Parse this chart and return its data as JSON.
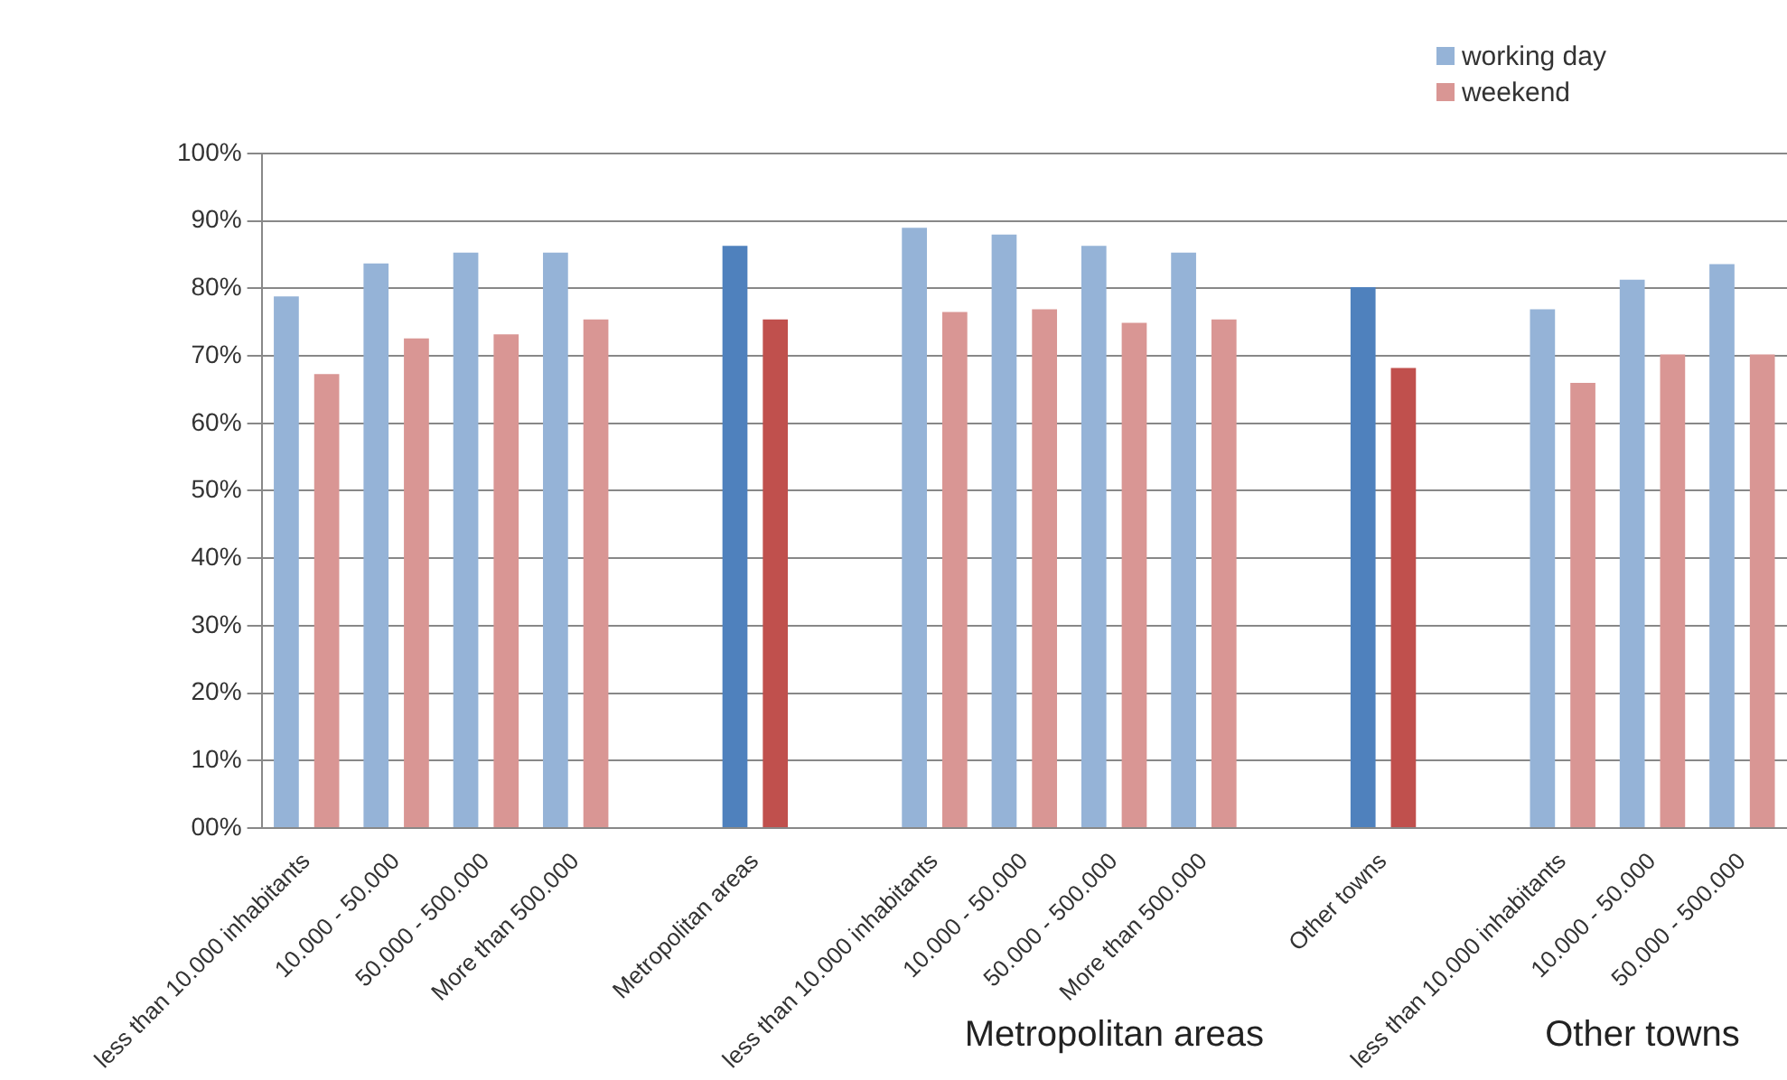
{
  "chart_data": {
    "type": "bar",
    "categories": [
      "less than 10.000 inhabitants",
      "10.000 - 50.000",
      "50.000 - 500.000",
      "More than 500.000",
      null,
      "Metropolitan areas",
      null,
      "less than 10.000 inhabitants",
      "10.000 - 50.000",
      "50.000 - 500.000",
      "More than 500.000",
      null,
      "Other towns",
      null,
      "less than 10.000 inhabitants",
      "10.000 - 50.000",
      "50.000 - 500.000"
    ],
    "series": [
      {
        "name": "working day",
        "color": "#95b3d7",
        "colors": [
          "#95b3d7",
          "#95b3d7",
          "#95b3d7",
          "#95b3d7",
          "#95b3d7",
          "#4f81bd",
          "#95b3d7",
          "#95b3d7",
          "#95b3d7",
          "#95b3d7",
          "#95b3d7",
          "#95b3d7",
          "#4f81bd",
          "#95b3d7",
          "#95b3d7",
          "#95b3d7",
          "#95b3d7"
        ],
        "values": [
          78.8,
          83.7,
          85.3,
          85.3,
          null,
          86.3,
          null,
          89,
          88,
          86.3,
          85.3,
          null,
          80.2,
          null,
          76.9,
          81.3,
          83.6
        ]
      },
      {
        "name": "weekend",
        "color": "#d99694",
        "colors": [
          "#d99694",
          "#d99694",
          "#d99694",
          "#d99694",
          "#d99694",
          "#c0504d",
          "#d99694",
          "#d99694",
          "#d99694",
          "#d99694",
          "#d99694",
          "#d99694",
          "#c0504d",
          "#d99694",
          "#d99694",
          "#d99694",
          "#d99694"
        ],
        "values": [
          67.3,
          72.6,
          73.2,
          75.4,
          null,
          75.4,
          null,
          76.5,
          76.9,
          74.9,
          75.4,
          null,
          68.2,
          null,
          66,
          70.2,
          70.2
        ]
      }
    ],
    "ylim": [
      0,
      100
    ],
    "yticks": [
      {
        "value": 0,
        "label": "00%"
      },
      {
        "value": 10,
        "label": "10%"
      },
      {
        "value": 20,
        "label": "20%"
      },
      {
        "value": 30,
        "label": "30%"
      },
      {
        "value": 40,
        "label": "40%"
      },
      {
        "value": 50,
        "label": "50%"
      },
      {
        "value": 60,
        "label": "60%"
      },
      {
        "value": 70,
        "label": "70%"
      },
      {
        "value": 80,
        "label": "80%"
      },
      {
        "value": 90,
        "label": "90%"
      },
      {
        "value": 100,
        "label": "100%"
      }
    ],
    "grid": "y",
    "legend": "top right",
    "annotations": [
      "Metropolitan areas",
      "Other towns"
    ]
  }
}
